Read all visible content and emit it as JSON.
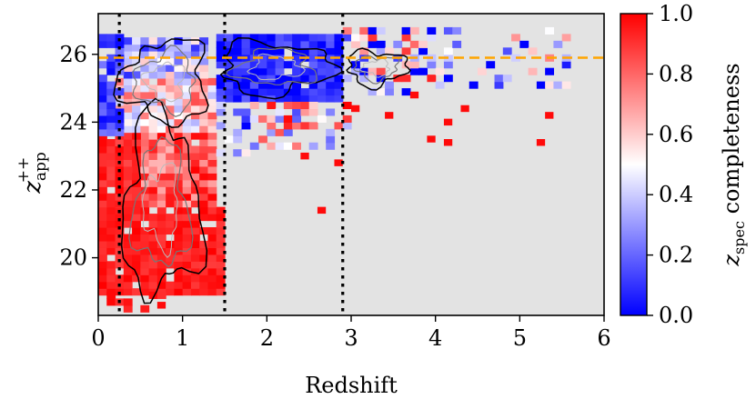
{
  "chart_data": {
    "type": "heatmap",
    "title": "",
    "xlabel": "Redshift",
    "ylabel": {
      "base": "z",
      "superscript": "++",
      "subscript": "app"
    },
    "xlim": [
      0,
      6
    ],
    "ylim": [
      18.3,
      27.2
    ],
    "xticks": [
      0,
      1,
      2,
      3,
      4,
      5,
      6
    ],
    "xtick_labels": [
      "0",
      "1",
      "2",
      "3",
      "4",
      "5",
      "6"
    ],
    "yticks": [
      20,
      22,
      24,
      26
    ],
    "ytick_labels": [
      "20",
      "22",
      "24",
      "26"
    ],
    "grid": false,
    "background_color": "#e3e3e3",
    "colormap": "bwr",
    "colorbar": {
      "label": {
        "base": "z",
        "subscript": "spec",
        "rest": " completeness"
      },
      "range": [
        0.0,
        1.0
      ],
      "ticks": [
        0.0,
        0.2,
        0.4,
        0.6,
        0.8,
        1.0
      ],
      "tick_labels": [
        "0.0",
        "0.2",
        "0.4",
        "0.6",
        "0.8",
        "1.0"
      ],
      "stops": [
        "#0000ff",
        "#ffffff",
        "#ff0000"
      ]
    },
    "vertical_lines": [
      {
        "x": 0.25,
        "style": "dotted",
        "color": "#000000"
      },
      {
        "x": 1.5,
        "style": "dotted",
        "color": "#000000"
      },
      {
        "x": 2.9,
        "style": "dotted",
        "color": "#000000"
      }
    ],
    "horizontal_lines": [
      {
        "y": 25.9,
        "style": "dashed",
        "color": "#ffa500"
      }
    ],
    "bins": {
      "dx": 0.1,
      "dy": 0.2
    },
    "regions": [
      {
        "x": [
          0.0,
          1.5
        ],
        "y": [
          18.9,
          21.5
        ],
        "base": 0.94,
        "spread": 0.06,
        "density": 0.92
      },
      {
        "x": [
          0.2,
          1.4
        ],
        "y": [
          21.5,
          23.7
        ],
        "base": 0.82,
        "spread": 0.18,
        "density": 0.97
      },
      {
        "x": [
          0.0,
          0.5
        ],
        "y": [
          21.5,
          23.6
        ],
        "base": 0.93,
        "spread": 0.07,
        "density": 0.9
      },
      {
        "x": [
          0.2,
          1.4
        ],
        "y": [
          23.7,
          25.3
        ],
        "base": 0.6,
        "spread": 0.25,
        "density": 0.97
      },
      {
        "x": [
          0.3,
          1.3
        ],
        "y": [
          25.3,
          26.5
        ],
        "base": 0.35,
        "spread": 0.3,
        "density": 0.95
      },
      {
        "x": [
          0.0,
          0.25
        ],
        "y": [
          23.6,
          26.6
        ],
        "base": 0.12,
        "spread": 0.12,
        "density": 0.85
      },
      {
        "x": [
          1.4,
          2.9
        ],
        "y": [
          24.6,
          26.6
        ],
        "base": 0.07,
        "spread": 0.12,
        "density": 0.95
      },
      {
        "x": [
          1.4,
          1.8
        ],
        "y": [
          23.0,
          24.6
        ],
        "base": 0.3,
        "spread": 0.3,
        "density": 0.55
      },
      {
        "x": [
          1.8,
          3.0
        ],
        "y": [
          23.2,
          24.6
        ],
        "base": 0.55,
        "spread": 0.45,
        "density": 0.35
      },
      {
        "x": [
          2.9,
          4.0
        ],
        "y": [
          24.8,
          26.8
        ],
        "base": 0.4,
        "spread": 0.55,
        "density": 0.45
      },
      {
        "x": [
          4.0,
          5.6
        ],
        "y": [
          25.0,
          26.8
        ],
        "base": 0.4,
        "spread": 0.55,
        "density": 0.25
      },
      {
        "x": [
          0.1,
          1.0
        ],
        "y": [
          18.4,
          19.0
        ],
        "base": 0.95,
        "spread": 0.05,
        "density": 0.25
      }
    ],
    "isolated_cells": [
      {
        "x": 2.4,
        "y": 22.9,
        "value": 0.98
      },
      {
        "x": 2.6,
        "y": 21.3,
        "value": 0.98
      },
      {
        "x": 2.8,
        "y": 22.7,
        "value": 0.98
      },
      {
        "x": 3.0,
        "y": 24.3,
        "value": 0.98
      },
      {
        "x": 3.4,
        "y": 24.1,
        "value": 0.98
      },
      {
        "x": 3.9,
        "y": 23.4,
        "value": 0.98
      },
      {
        "x": 4.1,
        "y": 23.9,
        "value": 0.98
      },
      {
        "x": 4.1,
        "y": 23.3,
        "value": 0.98
      },
      {
        "x": 4.3,
        "y": 24.3,
        "value": 0.98
      },
      {
        "x": 5.2,
        "y": 23.3,
        "value": 0.98
      },
      {
        "x": 5.3,
        "y": 24.1,
        "value": 0.98
      },
      {
        "x": 0.7,
        "y": 18.5,
        "value": 0.98
      },
      {
        "x": 3.7,
        "y": 24.7,
        "value": 0.98
      }
    ],
    "contour_levels": [
      {
        "color": "#000000",
        "width": 1.5,
        "scale": 1.0
      },
      {
        "color": "#777777",
        "width": 1.2,
        "scale": 0.7
      },
      {
        "color": "#bbbbbb",
        "width": 1.0,
        "scale": 0.45
      }
    ],
    "contour_clusters": [
      {
        "cx": 0.75,
        "cy": 21.5,
        "rx": 0.45,
        "ry": 2.6
      },
      {
        "cx": 0.8,
        "cy": 25.2,
        "rx": 0.5,
        "ry": 1.2
      },
      {
        "cx": 2.1,
        "cy": 25.6,
        "rx": 0.65,
        "ry": 0.75
      },
      {
        "cx": 3.3,
        "cy": 25.6,
        "rx": 0.35,
        "ry": 0.5
      }
    ]
  }
}
